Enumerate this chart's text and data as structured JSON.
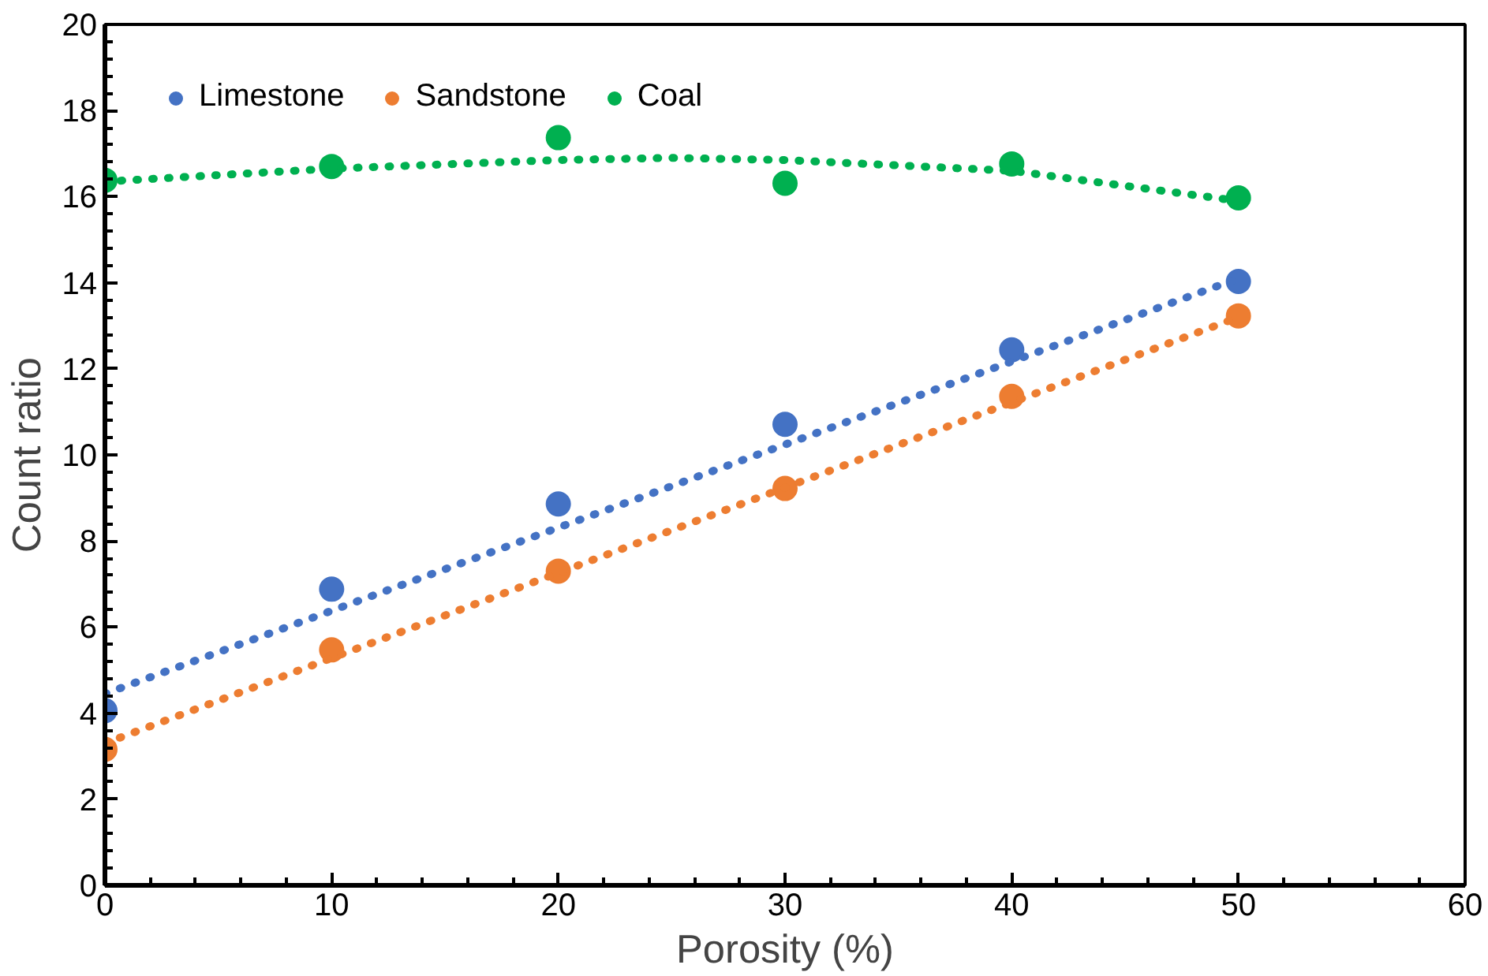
{
  "chart_data": {
    "type": "scatter",
    "xlabel": "Porosity (%)",
    "ylabel": "Count ratio",
    "xlim": [
      0,
      60
    ],
    "xticks": [
      0,
      10,
      20,
      30,
      40,
      50,
      60
    ],
    "ylim": [
      0,
      20
    ],
    "yticks": [
      0,
      2,
      4,
      6,
      8,
      10,
      12,
      14,
      16,
      18,
      20
    ],
    "grid": false,
    "legend": "top left",
    "marker": "circle",
    "x": [
      0,
      10,
      20,
      30,
      40,
      50
    ],
    "series": [
      {
        "name": "Limestone",
        "color": "#4472c4",
        "values": [
          4.06,
          6.88,
          8.86,
          10.71,
          12.44,
          14.03
        ]
      },
      {
        "name": "Sandstone",
        "color": "#ed7d31",
        "values": [
          3.16,
          5.47,
          7.3,
          9.22,
          11.36,
          13.23
        ]
      },
      {
        "name": "Coal",
        "color": "#00b050",
        "values": [
          16.38,
          16.7,
          17.37,
          16.31,
          16.76,
          15.97
        ]
      },
      {
        "type": "line",
        "marker": "none",
        "line_style": "dotted",
        "color": "#4472c4",
        "x": [
          0,
          50
        ],
        "values": [
          4.45,
          14.1
        ]
      },
      {
        "type": "line",
        "marker": "none",
        "line_style": "dotted",
        "color": "#ed7d31",
        "x": [
          0,
          50
        ],
        "values": [
          3.3,
          13.2
        ]
      },
      {
        "type": "line",
        "marker": "none",
        "line_style": "dotted",
        "color": "#00b050",
        "x": [
          0,
          10,
          20,
          25,
          30,
          40,
          50
        ],
        "values": [
          16.35,
          16.65,
          16.85,
          16.9,
          16.85,
          16.6,
          15.9
        ]
      }
    ]
  }
}
